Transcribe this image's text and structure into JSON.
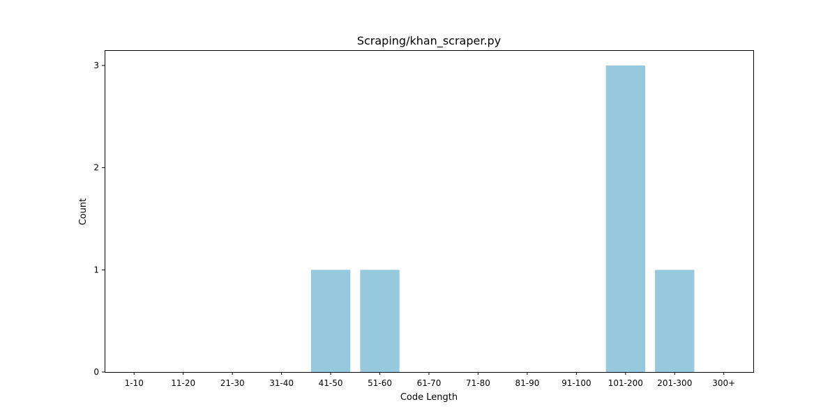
{
  "chart_data": {
    "type": "bar",
    "title": "Scraping/khan_scraper.py",
    "xlabel": "Code Length",
    "ylabel": "Count",
    "categories": [
      "1-10",
      "11-20",
      "21-30",
      "31-40",
      "41-50",
      "51-60",
      "61-70",
      "71-80",
      "81-90",
      "91-100",
      "101-200",
      "201-300",
      "300+"
    ],
    "values": [
      0,
      0,
      0,
      0,
      1,
      1,
      0,
      0,
      0,
      0,
      3,
      1,
      0
    ],
    "yticks": [
      "0",
      "1",
      "2",
      "3"
    ],
    "ylim": [
      0,
      3.15
    ],
    "grid": false,
    "bar_color": "#96c9dd"
  }
}
